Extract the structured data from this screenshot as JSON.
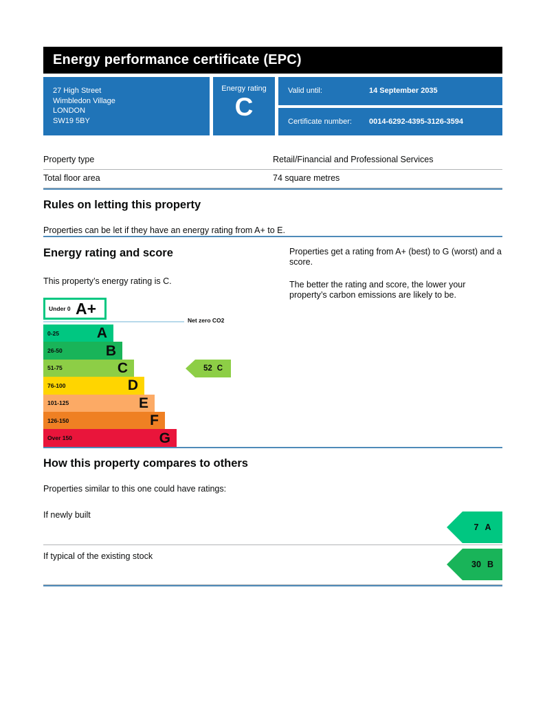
{
  "header": {
    "title": "Energy performance certificate (EPC)"
  },
  "summary": {
    "address_lines": [
      "27 High Street",
      "Wimbledon Village",
      "LONDON",
      "SW19 5BY"
    ],
    "energy_rating_label": "Energy rating",
    "energy_rating": "C",
    "valid_until_label": "Valid until:",
    "valid_until": "14 September 2035",
    "certificate_number_label": "Certificate number:",
    "certificate_number": "0014-6292-4395-3126-3594"
  },
  "property_table": {
    "rows": [
      {
        "label": "Property type",
        "value": "Retail/Financial and Professional Services"
      },
      {
        "label": "Total floor area",
        "value": "74 square metres"
      }
    ]
  },
  "rules_section": {
    "heading": "Rules on letting this property",
    "body": "Properties can be let if they have an energy rating from A+ to E."
  },
  "rating_section": {
    "heading": "Energy rating and score",
    "subtext": "This property’s energy rating is C.",
    "right_para1": "Properties get a rating from A+ (best) to G (worst) and a score.",
    "right_para2": "The better the rating and score, the lower your property’s carbon emissions are likely to be.",
    "net_zero_label": "Net zero CO2"
  },
  "chart_data": {
    "type": "bar",
    "title": "Energy rating and score",
    "bands": [
      {
        "range": "Under 0",
        "letter": "A+",
        "color": "#ffffff",
        "border": "#00c781",
        "width": 92
      },
      {
        "range": "0-25",
        "letter": "A",
        "color": "#00c781",
        "width": 102
      },
      {
        "range": "26-50",
        "letter": "B",
        "color": "#19b459",
        "width": 115
      },
      {
        "range": "51-75",
        "letter": "C",
        "color": "#8dce46",
        "width": 132
      },
      {
        "range": "76-100",
        "letter": "D",
        "color": "#ffd500",
        "width": 147
      },
      {
        "range": "101-125",
        "letter": "E",
        "color": "#fcaa65",
        "width": 162
      },
      {
        "range": "126-150",
        "letter": "F",
        "color": "#ef8023",
        "width": 177
      },
      {
        "range": "Over 150",
        "letter": "G",
        "color": "#e9153b",
        "width": 194
      }
    ],
    "current": {
      "score": 52,
      "letter": "C",
      "color": "#8dce46"
    }
  },
  "compare_section": {
    "heading": "How this property compares to others",
    "subtext": "Properties similar to this one could have ratings:",
    "rows": [
      {
        "label": "If newly built",
        "score": "7",
        "letter": "A",
        "color": "#00c781"
      },
      {
        "label": "If typical of the existing stock",
        "score": "30",
        "letter": "B",
        "color": "#19b459"
      }
    ]
  },
  "colors": {
    "brand_blue": "#2074b8",
    "section_rule_blue": "#4e8ab8",
    "table_rule_gray": "#b1b4b6",
    "net_zero_line": "#b7d9ea",
    "text": "#0b0c0c"
  }
}
